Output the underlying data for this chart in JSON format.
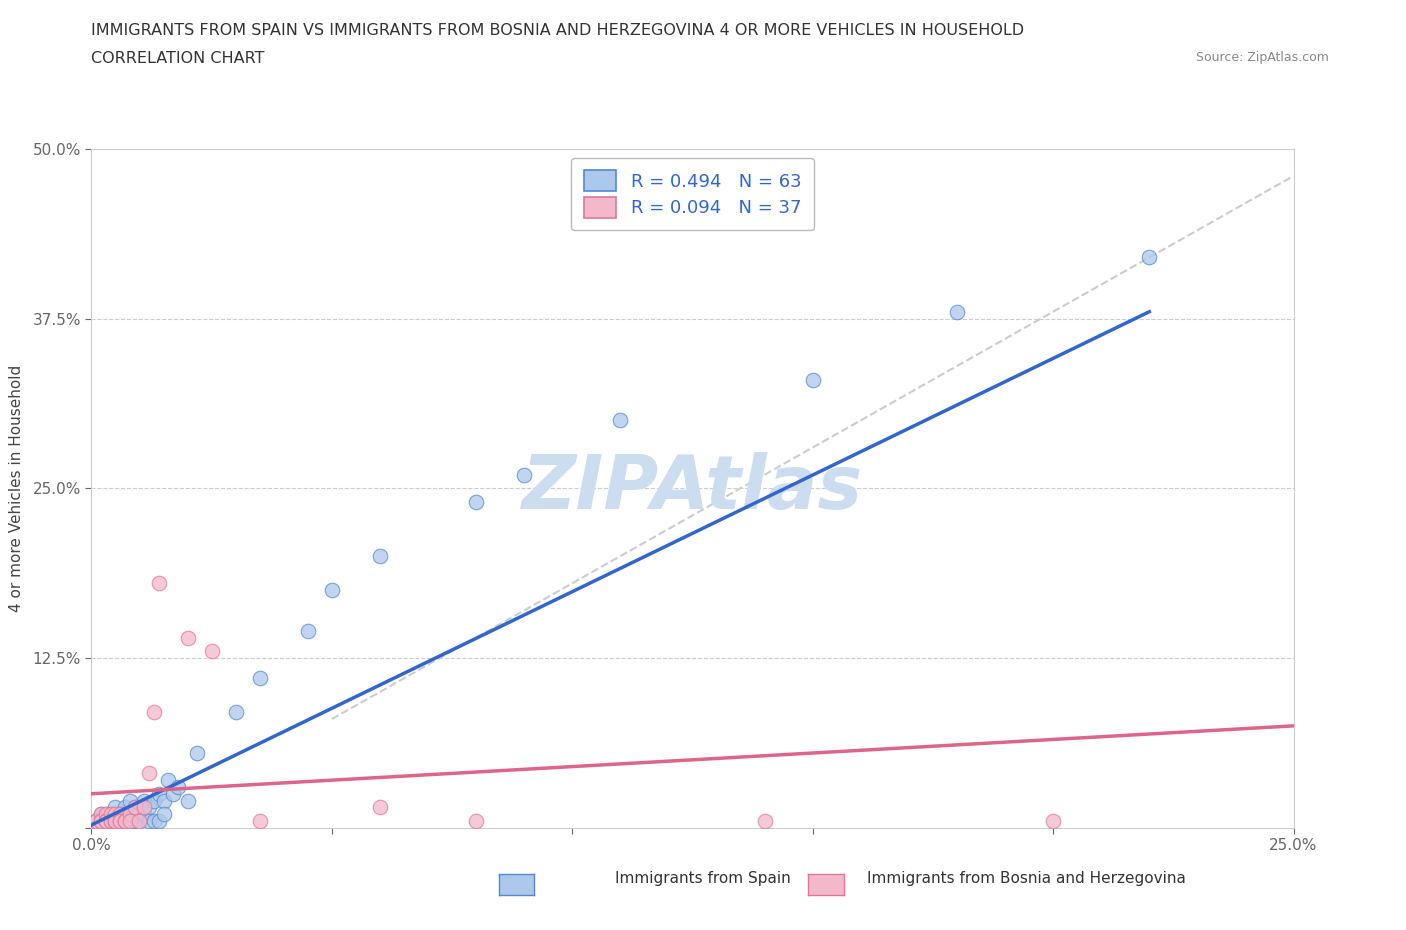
{
  "title_line1": "IMMIGRANTS FROM SPAIN VS IMMIGRANTS FROM BOSNIA AND HERZEGOVINA 4 OR MORE VEHICLES IN HOUSEHOLD",
  "title_line2": "CORRELATION CHART",
  "source_text": "Source: ZipAtlas.com",
  "ylabel": "4 or more Vehicles in Household",
  "xlim": [
    0.0,
    0.25
  ],
  "ylim": [
    0.0,
    0.5
  ],
  "xticks": [
    0.0,
    0.05,
    0.1,
    0.15,
    0.2,
    0.25
  ],
  "yticks": [
    0.0,
    0.125,
    0.25,
    0.375,
    0.5
  ],
  "xtick_labels": [
    "0.0%",
    "",
    "",
    "",
    "",
    "25.0%"
  ],
  "ytick_labels": [
    "",
    "12.5%",
    "25.0%",
    "37.5%",
    "50.0%"
  ],
  "legend1_label": "R = 0.494   N = 63",
  "legend2_label": "R = 0.094   N = 37",
  "legend_bottom_label1": "Immigrants from Spain",
  "legend_bottom_label2": "Immigrants from Bosnia and Herzegovina",
  "spain_color": "#adc8ed",
  "bosnia_color": "#f4b8cb",
  "spain_edge_color": "#5588cc",
  "bosnia_edge_color": "#dd7799",
  "trend_spain_color": "#3366cc",
  "trend_bosnia_color": "#dd6688",
  "ref_line_color": "#cccccc",
  "watermark_color": "#ccddf0",
  "background_color": "#ffffff",
  "spain_x": [
    0.001,
    0.001,
    0.002,
    0.002,
    0.002,
    0.003,
    0.003,
    0.003,
    0.003,
    0.003,
    0.004,
    0.004,
    0.004,
    0.004,
    0.004,
    0.005,
    0.005,
    0.005,
    0.005,
    0.005,
    0.005,
    0.005,
    0.006,
    0.006,
    0.006,
    0.006,
    0.007,
    0.007,
    0.007,
    0.008,
    0.008,
    0.008,
    0.009,
    0.009,
    0.01,
    0.01,
    0.01,
    0.011,
    0.011,
    0.012,
    0.012,
    0.013,
    0.013,
    0.014,
    0.014,
    0.015,
    0.015,
    0.016,
    0.017,
    0.018,
    0.02,
    0.022,
    0.03,
    0.035,
    0.045,
    0.05,
    0.06,
    0.08,
    0.09,
    0.11,
    0.15,
    0.18,
    0.22
  ],
  "spain_y": [
    0.005,
    0.005,
    0.005,
    0.01,
    0.005,
    0.005,
    0.01,
    0.005,
    0.005,
    0.005,
    0.005,
    0.01,
    0.005,
    0.005,
    0.005,
    0.005,
    0.01,
    0.015,
    0.005,
    0.005,
    0.005,
    0.005,
    0.005,
    0.005,
    0.01,
    0.005,
    0.015,
    0.01,
    0.005,
    0.02,
    0.005,
    0.01,
    0.015,
    0.005,
    0.015,
    0.01,
    0.005,
    0.02,
    0.01,
    0.015,
    0.005,
    0.02,
    0.005,
    0.025,
    0.005,
    0.02,
    0.01,
    0.035,
    0.025,
    0.03,
    0.02,
    0.055,
    0.085,
    0.11,
    0.145,
    0.175,
    0.2,
    0.24,
    0.26,
    0.3,
    0.33,
    0.38,
    0.42
  ],
  "bosnia_x": [
    0.001,
    0.001,
    0.001,
    0.002,
    0.002,
    0.002,
    0.003,
    0.003,
    0.003,
    0.003,
    0.004,
    0.004,
    0.004,
    0.005,
    0.005,
    0.005,
    0.005,
    0.006,
    0.006,
    0.006,
    0.007,
    0.007,
    0.008,
    0.008,
    0.009,
    0.01,
    0.011,
    0.012,
    0.013,
    0.014,
    0.02,
    0.025,
    0.035,
    0.06,
    0.08,
    0.14,
    0.2
  ],
  "bosnia_y": [
    0.005,
    0.005,
    0.005,
    0.01,
    0.005,
    0.005,
    0.005,
    0.01,
    0.005,
    0.005,
    0.01,
    0.005,
    0.005,
    0.005,
    0.01,
    0.005,
    0.005,
    0.01,
    0.005,
    0.005,
    0.005,
    0.005,
    0.01,
    0.005,
    0.015,
    0.005,
    0.015,
    0.04,
    0.085,
    0.18,
    0.14,
    0.13,
    0.005,
    0.015,
    0.005,
    0.005,
    0.005
  ],
  "trend_spain_x0": 0.0,
  "trend_spain_y0": 0.002,
  "trend_spain_x1": 0.22,
  "trend_spain_y1": 0.38,
  "trend_bosnia_x0": 0.0,
  "trend_bosnia_y0": 0.025,
  "trend_bosnia_x1": 0.25,
  "trend_bosnia_y1": 0.075,
  "ref_line_x0": 0.05,
  "ref_line_y0": 0.08,
  "ref_line_x1": 0.25,
  "ref_line_y1": 0.48
}
